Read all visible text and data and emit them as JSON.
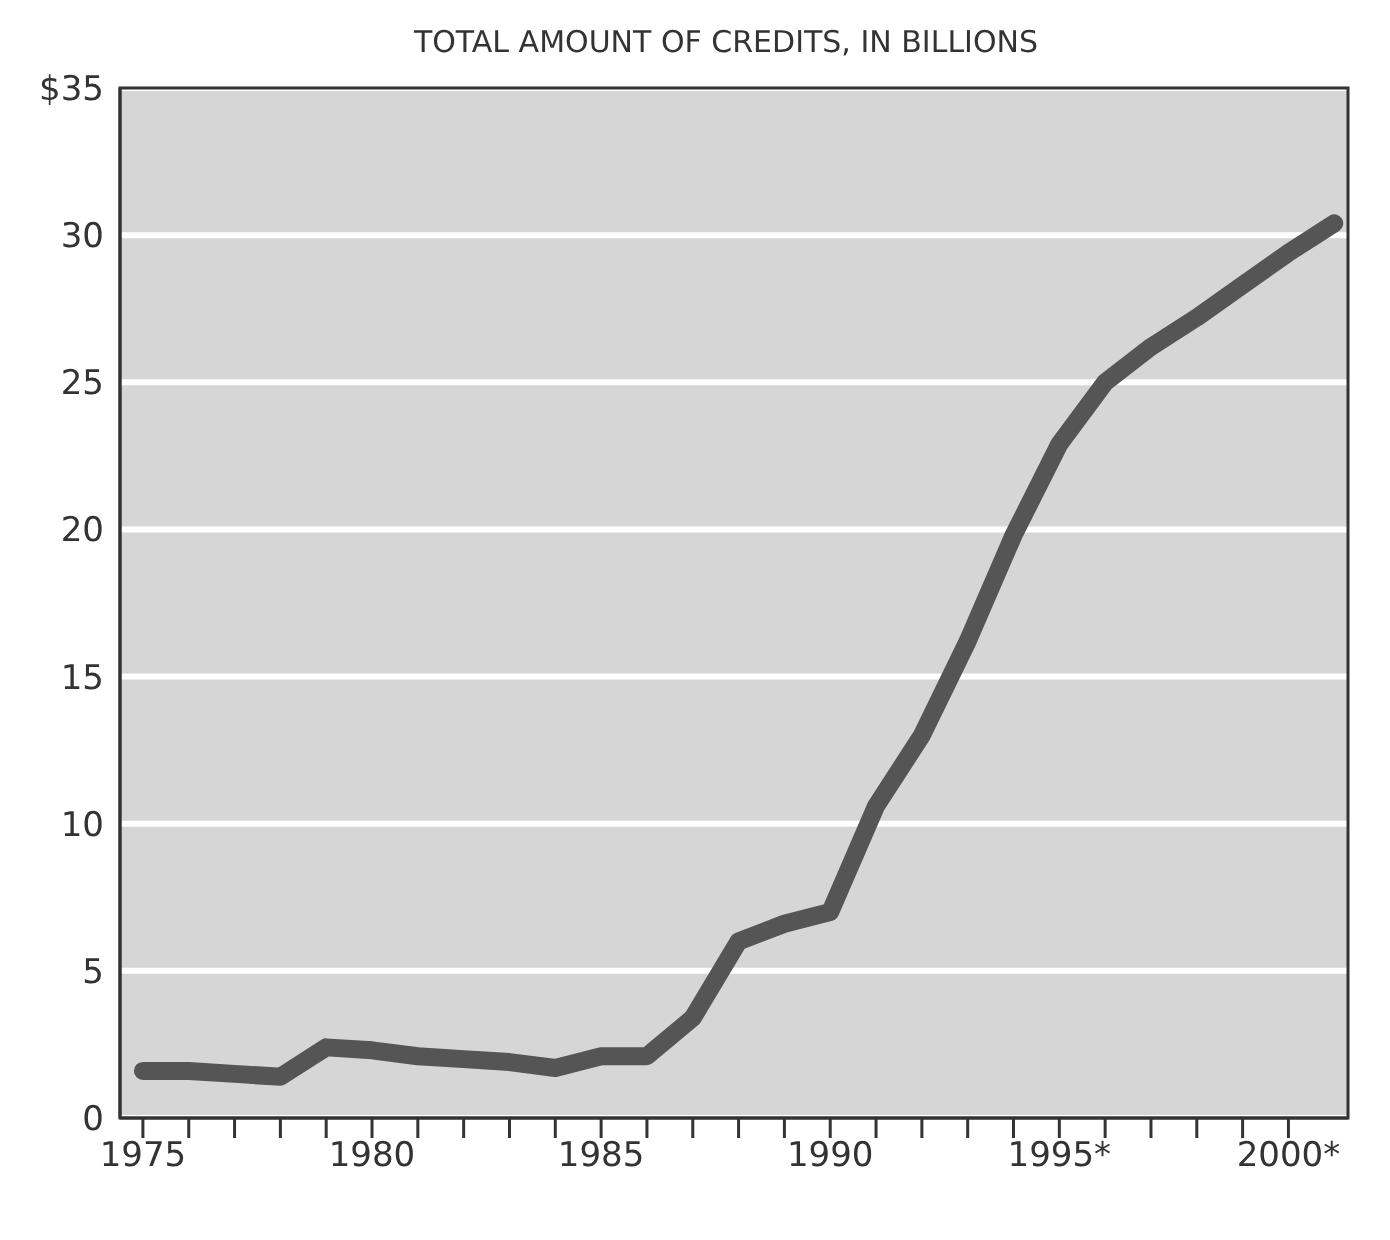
{
  "chart_data": {
    "type": "line",
    "title": "TOTAL AMOUNT OF CREDITS, IN BILLIONS",
    "x": [
      1975,
      1976,
      1977,
      1978,
      1979,
      1980,
      1981,
      1982,
      1983,
      1984,
      1985,
      1986,
      1987,
      1988,
      1989,
      1990,
      1991,
      1992,
      1993,
      1994,
      1995,
      1996,
      1997,
      1998,
      1999,
      2000,
      2001
    ],
    "series": [
      {
        "color": "#555555",
        "values": [
          1.6,
          1.6,
          1.5,
          1.4,
          2.4,
          2.3,
          2.1,
          2.0,
          1.9,
          1.7,
          2.1,
          2.1,
          3.4,
          6.0,
          6.6,
          7.0,
          10.6,
          13.0,
          16.2,
          19.8,
          22.9,
          25.0,
          26.2,
          27.2,
          28.3,
          29.4,
          30.4
        ]
      }
    ],
    "xlim": [
      1974.5,
      2001.3
    ],
    "xticks": [
      1975,
      {
        "value": 1976,
        "label": null
      },
      {
        "value": 1977,
        "label": null
      },
      {
        "value": 1978,
        "label": null
      },
      {
        "value": 1979,
        "label": null
      },
      1980,
      {
        "value": 1981,
        "label": null
      },
      {
        "value": 1982,
        "label": null
      },
      {
        "value": 1983,
        "label": null
      },
      {
        "value": 1984,
        "label": null
      },
      1985,
      {
        "value": 1986,
        "label": null
      },
      {
        "value": 1987,
        "label": null
      },
      {
        "value": 1988,
        "label": null
      },
      {
        "value": 1989,
        "label": null
      },
      1990,
      {
        "value": 1991,
        "label": null
      },
      {
        "value": 1992,
        "label": null
      },
      {
        "value": 1993,
        "label": null
      },
      {
        "value": 1994,
        "label": null
      },
      {
        "value": 1995,
        "label": "1995*"
      },
      {
        "value": 1996,
        "label": null
      },
      {
        "value": 1997,
        "label": null
      },
      {
        "value": 1998,
        "label": null
      },
      {
        "value": 1999,
        "label": null
      },
      {
        "value": 2000,
        "label": "2000*"
      }
    ],
    "ylim": [
      0,
      35
    ],
    "yticks": [
      0,
      5,
      10,
      15,
      20,
      25,
      30,
      {
        "value": 35,
        "label": "$35"
      }
    ],
    "grid": "y",
    "marker": "none",
    "line_style": "solid"
  }
}
